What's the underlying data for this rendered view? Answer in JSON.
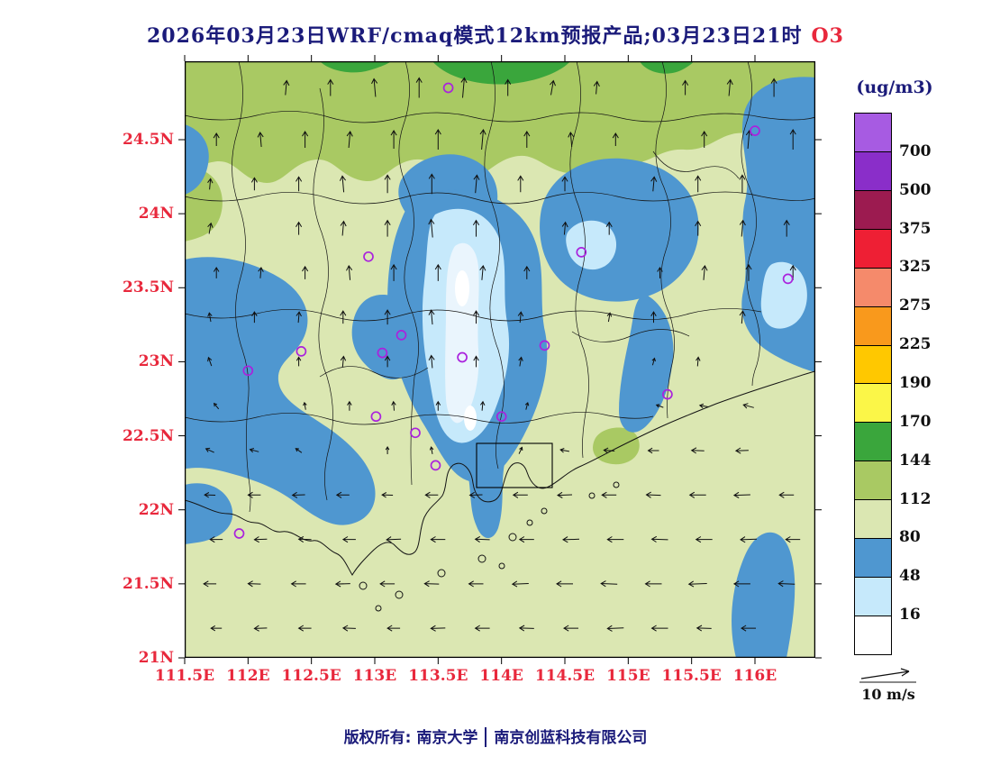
{
  "title": {
    "text": "2026年03月23日WRF/cmaq模式12km预报产品;03月23日21时",
    "pollutant": "O3"
  },
  "footer": {
    "left": "版权所有: 南京大学",
    "separator": "|",
    "right": "南京创蓝科技有限公司"
  },
  "colorbar": {
    "units_label": "(ug/m3)",
    "levels": [
      700,
      500,
      375,
      325,
      275,
      225,
      190,
      170,
      144,
      112,
      80,
      48,
      16
    ],
    "colors_top_to_bottom": [
      "#a75be2",
      "#8a2ec9",
      "#9c1b50",
      "#ee1f34",
      "#f58a6b",
      "#f9991c",
      "#ffc800",
      "#fbf648",
      "#3aa63c",
      "#a9c963",
      "#dbe7b2",
      "#4f97d0",
      "#c6e9fb",
      "#ffffff"
    ]
  },
  "axes": {
    "lon_ticks": {
      "labels": [
        "111.5E",
        "112E",
        "112.5E",
        "113E",
        "113.5E",
        "114E",
        "114.5E",
        "115E",
        "115.5E",
        "116E"
      ],
      "values": [
        111.5,
        112,
        112.5,
        113,
        113.5,
        114,
        114.5,
        115,
        115.5,
        116
      ]
    },
    "lat_ticks": {
      "labels": [
        "24.5N",
        "24N",
        "23.5N",
        "23N",
        "22.5N",
        "22N",
        "21.5N",
        "21N"
      ],
      "values": [
        24.5,
        24,
        23.5,
        23,
        22.5,
        22,
        21.5,
        21
      ]
    }
  },
  "wind_legend": {
    "label": "10 m/s"
  },
  "colors": {
    "title": "#1b1b7a",
    "pollutant_accent": "#e8283c",
    "axis_labels": "#e8283c",
    "footer": "#1b1b7a",
    "units": "#1b1b7a",
    "colorbar_text": "#101010",
    "boundaries": "#141414",
    "stations": "#aa22dd",
    "arrows": "#101010",
    "map_levels": {
      "khaki": "#dbe7b2",
      "olive": "#a9c963",
      "green": "#3aa63c",
      "blue": "#4f97d0",
      "lightblue": "#c6e9fb",
      "paleblue": "#eaf5fd",
      "white": "#ffffff"
    }
  },
  "chart_data": {
    "type": "heatmap",
    "title": "2026年03月23日WRF/cmaq模式12km预报产品;03月23日21时 O3",
    "units": "ug/m3",
    "lon_range": [
      111.5,
      116.47
    ],
    "lat_range": [
      21,
      25.03
    ],
    "contour_levels": [
      16,
      48,
      80,
      112,
      144,
      170,
      190,
      225,
      275,
      325,
      375,
      500,
      700
    ],
    "legend_position": "right",
    "wind_reference_label": "10 m/s",
    "stations_lonlat": [
      [
        113.58,
        24.85
      ],
      [
        116.0,
        24.56
      ],
      [
        112.95,
        23.71
      ],
      [
        114.63,
        23.74
      ],
      [
        116.26,
        23.56
      ],
      [
        113.21,
        23.18
      ],
      [
        112.42,
        23.07
      ],
      [
        113.06,
        23.06
      ],
      [
        112.0,
        22.94
      ],
      [
        113.69,
        23.03
      ],
      [
        114.34,
        23.11
      ],
      [
        115.31,
        22.78
      ],
      [
        114.0,
        22.63
      ],
      [
        113.01,
        22.63
      ],
      [
        113.32,
        22.52
      ],
      [
        113.48,
        22.3
      ],
      [
        111.93,
        21.84
      ]
    ],
    "wind_arrows": [
      [
        112.3,
        24.85,
        5,
        16
      ],
      [
        112.65,
        24.85,
        0,
        18
      ],
      [
        113.0,
        24.85,
        355,
        20
      ],
      [
        113.35,
        24.85,
        0,
        22
      ],
      [
        113.7,
        24.85,
        5,
        22
      ],
      [
        114.05,
        24.85,
        0,
        18
      ],
      [
        114.4,
        24.85,
        10,
        16
      ],
      [
        114.75,
        24.85,
        5,
        14
      ],
      [
        115.45,
        24.85,
        0,
        16
      ],
      [
        115.8,
        24.85,
        5,
        18
      ],
      [
        116.15,
        24.85,
        0,
        20
      ],
      [
        111.75,
        24.5,
        0,
        14
      ],
      [
        112.1,
        24.5,
        355,
        16
      ],
      [
        112.45,
        24.5,
        0,
        18
      ],
      [
        112.8,
        24.5,
        5,
        18
      ],
      [
        113.15,
        24.5,
        0,
        20
      ],
      [
        113.5,
        24.5,
        0,
        22
      ],
      [
        113.85,
        24.5,
        5,
        22
      ],
      [
        114.2,
        24.5,
        0,
        18
      ],
      [
        114.55,
        24.5,
        355,
        16
      ],
      [
        114.9,
        24.5,
        0,
        14
      ],
      [
        115.6,
        24.5,
        0,
        18
      ],
      [
        115.95,
        24.5,
        5,
        20
      ],
      [
        116.3,
        24.5,
        0,
        22
      ],
      [
        111.7,
        24.2,
        5,
        12
      ],
      [
        112.05,
        24.2,
        0,
        14
      ],
      [
        112.4,
        24.2,
        0,
        16
      ],
      [
        112.75,
        24.2,
        355,
        18
      ],
      [
        113.1,
        24.2,
        0,
        20
      ],
      [
        113.45,
        24.2,
        0,
        22
      ],
      [
        113.8,
        24.2,
        5,
        20
      ],
      [
        114.15,
        24.2,
        0,
        18
      ],
      [
        114.5,
        24.2,
        0,
        16
      ],
      [
        115.2,
        24.2,
        5,
        16
      ],
      [
        115.55,
        24.2,
        0,
        18
      ],
      [
        115.9,
        24.2,
        0,
        20
      ],
      [
        111.7,
        23.9,
        10,
        12
      ],
      [
        112.4,
        23.9,
        0,
        14
      ],
      [
        112.75,
        23.9,
        5,
        16
      ],
      [
        113.1,
        23.9,
        0,
        18
      ],
      [
        113.45,
        23.9,
        355,
        20
      ],
      [
        113.8,
        23.9,
        0,
        18
      ],
      [
        114.5,
        23.9,
        5,
        14
      ],
      [
        114.85,
        23.9,
        0,
        14
      ],
      [
        115.55,
        23.9,
        0,
        16
      ],
      [
        115.9,
        23.9,
        5,
        18
      ],
      [
        116.25,
        23.9,
        0,
        18
      ],
      [
        111.75,
        23.6,
        0,
        12
      ],
      [
        112.1,
        23.6,
        5,
        12
      ],
      [
        112.45,
        23.6,
        0,
        14
      ],
      [
        112.8,
        23.6,
        355,
        16
      ],
      [
        113.15,
        23.6,
        0,
        18
      ],
      [
        113.5,
        23.6,
        0,
        18
      ],
      [
        113.85,
        23.6,
        5,
        16
      ],
      [
        114.2,
        23.6,
        0,
        14
      ],
      [
        115.25,
        23.6,
        0,
        12
      ],
      [
        115.6,
        23.6,
        5,
        16
      ],
      [
        115.95,
        23.6,
        0,
        18
      ],
      [
        116.3,
        23.6,
        0,
        16
      ],
      [
        111.7,
        23.3,
        350,
        10
      ],
      [
        112.05,
        23.3,
        0,
        12
      ],
      [
        112.4,
        23.3,
        5,
        12
      ],
      [
        112.75,
        23.3,
        0,
        14
      ],
      [
        113.1,
        23.3,
        0,
        16
      ],
      [
        113.45,
        23.3,
        355,
        16
      ],
      [
        113.8,
        23.3,
        0,
        14
      ],
      [
        114.15,
        23.3,
        5,
        12
      ],
      [
        114.85,
        23.3,
        10,
        10
      ],
      [
        115.2,
        23.3,
        0,
        12
      ],
      [
        115.9,
        23.3,
        5,
        14
      ],
      [
        111.7,
        23.0,
        340,
        10
      ],
      [
        112.4,
        23.0,
        0,
        10
      ],
      [
        112.75,
        23.0,
        5,
        12
      ],
      [
        113.1,
        23.0,
        0,
        12
      ],
      [
        113.45,
        23.0,
        355,
        14
      ],
      [
        113.8,
        23.0,
        0,
        12
      ],
      [
        114.15,
        23.0,
        10,
        10
      ],
      [
        115.2,
        23.0,
        15,
        8
      ],
      [
        115.55,
        23.0,
        5,
        10
      ],
      [
        111.75,
        22.7,
        320,
        8
      ],
      [
        112.45,
        22.7,
        350,
        8
      ],
      [
        112.8,
        22.7,
        0,
        10
      ],
      [
        113.15,
        22.7,
        355,
        10
      ],
      [
        113.5,
        22.7,
        0,
        10
      ],
      [
        113.85,
        22.7,
        5,
        10
      ],
      [
        114.2,
        22.7,
        15,
        8
      ],
      [
        115.25,
        22.7,
        290,
        8
      ],
      [
        115.6,
        22.7,
        280,
        10
      ],
      [
        115.95,
        22.7,
        285,
        12
      ],
      [
        111.7,
        22.4,
        295,
        10
      ],
      [
        112.05,
        22.4,
        285,
        10
      ],
      [
        112.4,
        22.4,
        305,
        8
      ],
      [
        113.1,
        22.4,
        0,
        8
      ],
      [
        113.45,
        22.4,
        350,
        8
      ],
      [
        114.15,
        22.4,
        25,
        8
      ],
      [
        114.5,
        22.4,
        280,
        10
      ],
      [
        114.85,
        22.4,
        275,
        12
      ],
      [
        115.2,
        22.4,
        270,
        12
      ],
      [
        115.55,
        22.4,
        272,
        14
      ],
      [
        115.9,
        22.4,
        268,
        14
      ],
      [
        111.7,
        22.1,
        272,
        12
      ],
      [
        112.05,
        22.1,
        270,
        14
      ],
      [
        112.4,
        22.1,
        268,
        14
      ],
      [
        112.75,
        22.1,
        270,
        14
      ],
      [
        113.1,
        22.1,
        272,
        12
      ],
      [
        113.45,
        22.1,
        270,
        14
      ],
      [
        113.8,
        22.1,
        268,
        14
      ],
      [
        114.15,
        22.1,
        270,
        16
      ],
      [
        114.5,
        22.1,
        268,
        16
      ],
      [
        114.85,
        22.1,
        270,
        16
      ],
      [
        115.2,
        22.1,
        272,
        16
      ],
      [
        115.55,
        22.1,
        270,
        18
      ],
      [
        115.9,
        22.1,
        268,
        18
      ],
      [
        116.25,
        22.1,
        270,
        16
      ],
      [
        111.75,
        21.8,
        270,
        14
      ],
      [
        112.1,
        21.8,
        268,
        14
      ],
      [
        112.45,
        21.8,
        272,
        14
      ],
      [
        112.8,
        21.8,
        270,
        14
      ],
      [
        113.15,
        21.8,
        268,
        16
      ],
      [
        113.5,
        21.8,
        270,
        16
      ],
      [
        113.85,
        21.8,
        272,
        16
      ],
      [
        114.2,
        21.8,
        270,
        16
      ],
      [
        114.55,
        21.8,
        268,
        18
      ],
      [
        114.9,
        21.8,
        270,
        18
      ],
      [
        115.25,
        21.8,
        272,
        18
      ],
      [
        115.6,
        21.8,
        270,
        18
      ],
      [
        115.95,
        21.8,
        268,
        18
      ],
      [
        116.3,
        21.8,
        270,
        16
      ],
      [
        111.7,
        21.5,
        270,
        14
      ],
      [
        112.05,
        21.5,
        272,
        14
      ],
      [
        112.4,
        21.5,
        270,
        16
      ],
      [
        112.75,
        21.5,
        268,
        16
      ],
      [
        113.1,
        21.5,
        270,
        16
      ],
      [
        113.45,
        21.5,
        272,
        16
      ],
      [
        113.8,
        21.5,
        270,
        16
      ],
      [
        114.15,
        21.5,
        268,
        18
      ],
      [
        114.5,
        21.5,
        270,
        18
      ],
      [
        114.85,
        21.5,
        272,
        18
      ],
      [
        115.2,
        21.5,
        270,
        18
      ],
      [
        115.55,
        21.5,
        268,
        20
      ],
      [
        115.9,
        21.5,
        270,
        18
      ],
      [
        116.25,
        21.5,
        272,
        18
      ],
      [
        111.75,
        21.2,
        270,
        12
      ],
      [
        112.1,
        21.2,
        268,
        14
      ],
      [
        112.45,
        21.2,
        270,
        14
      ],
      [
        112.8,
        21.2,
        272,
        14
      ],
      [
        113.15,
        21.2,
        270,
        14
      ],
      [
        113.5,
        21.2,
        268,
        16
      ],
      [
        113.85,
        21.2,
        270,
        16
      ],
      [
        114.2,
        21.2,
        272,
        16
      ],
      [
        114.55,
        21.2,
        270,
        16
      ],
      [
        114.9,
        21.2,
        268,
        18
      ],
      [
        115.25,
        21.2,
        270,
        18
      ],
      [
        115.6,
        21.2,
        272,
        16
      ],
      [
        115.95,
        21.2,
        270,
        16
      ]
    ]
  }
}
